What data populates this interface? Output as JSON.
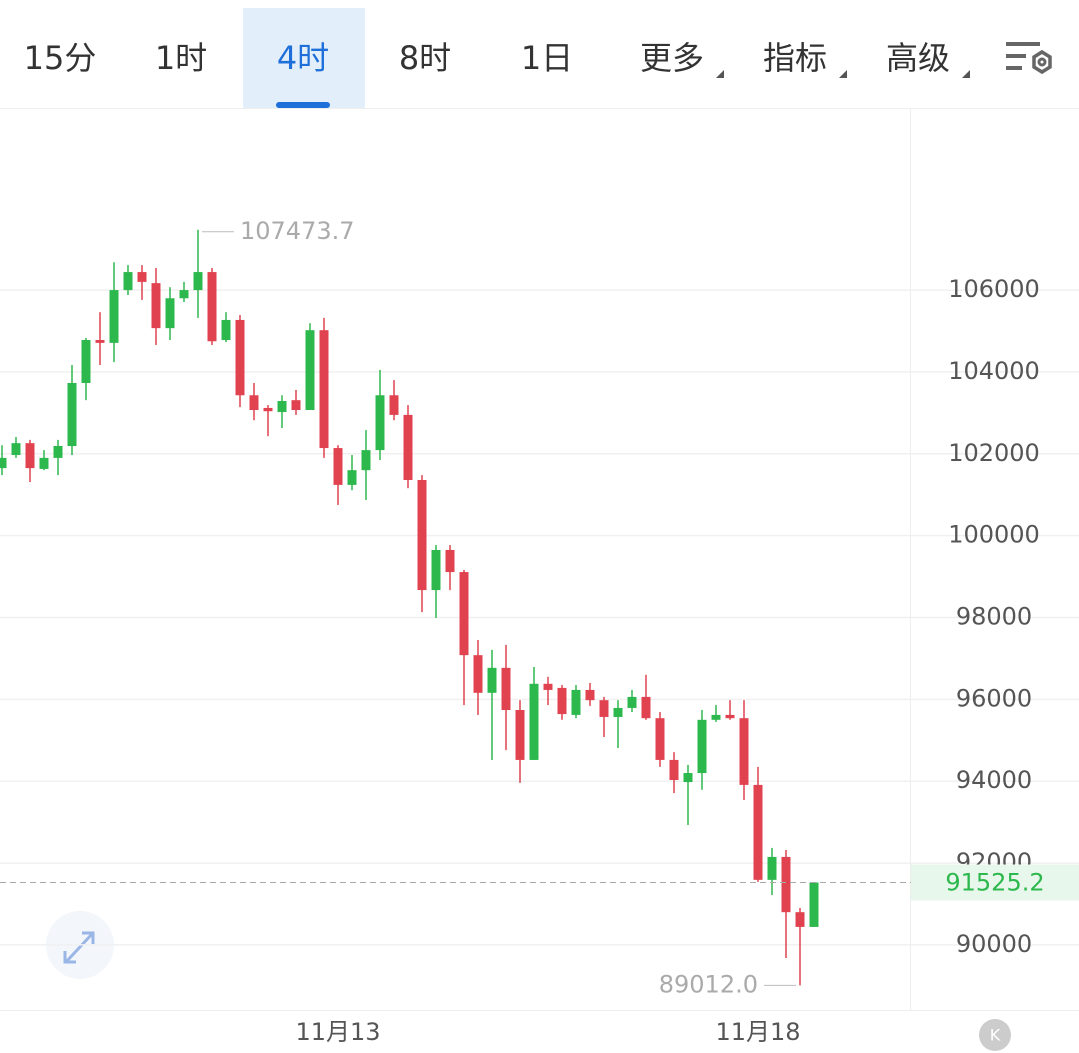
{
  "toolbar": {
    "tabs": [
      "15分",
      "1时",
      "4时",
      "8时",
      "1日"
    ],
    "active": 2,
    "menus": [
      "更多",
      "指标",
      "高级"
    ]
  },
  "chart_data": {
    "type": "candlestick",
    "categories": [
      null,
      null,
      null,
      null,
      null,
      null,
      null,
      null,
      null,
      null,
      null,
      null,
      null,
      null,
      null,
      null,
      null,
      null,
      null,
      null,
      null,
      null,
      null,
      null,
      "11月13",
      null,
      null,
      null,
      null,
      null,
      null,
      null,
      null,
      null,
      null,
      null,
      null,
      null,
      null,
      null,
      null,
      null,
      null,
      null,
      null,
      null,
      null,
      null,
      null,
      null,
      null,
      null,
      null,
      null,
      "11月18",
      null,
      null,
      null,
      null
    ],
    "open": [
      101650,
      101970,
      102260,
      101630,
      101900,
      102190,
      103730,
      104780,
      104710,
      106000,
      106440,
      106170,
      105070,
      105800,
      106000,
      106440,
      104780,
      105270,
      103430,
      103120,
      103020,
      103310,
      103070,
      105020,
      102140,
      101240,
      101600,
      102090,
      103430,
      102950,
      101360,
      98670,
      99650,
      99110,
      97080,
      96160,
      96770,
      95740,
      94520,
      96380,
      96280,
      95620,
      96230,
      95980,
      95570,
      95790,
      96060,
      95540,
      94520,
      93980,
      94200,
      95500,
      95620,
      95540,
      93910,
      91590,
      92150,
      90800,
      90440
    ],
    "high": [
      102210,
      102410,
      102340,
      102090,
      102340,
      104170,
      104830,
      105460,
      106680,
      106610,
      106610,
      106540,
      106070,
      106200,
      107473.7,
      106540,
      105460,
      105390,
      103730,
      103190,
      103430,
      103560,
      105190,
      105320,
      102210,
      101970,
      102580,
      104050,
      103800,
      103190,
      101480,
      99770,
      99770,
      99160,
      97450,
      97210,
      97330,
      95980,
      96790,
      96550,
      96350,
      96350,
      96400,
      96060,
      95980,
      96230,
      96600,
      95690,
      94710,
      94400,
      95740,
      95860,
      95980,
      95980,
      94350,
      92370,
      92320,
      90900,
      91510
    ],
    "low": [
      101480,
      101900,
      101310,
      101600,
      101480,
      101970,
      103310,
      104170,
      104240,
      105880,
      105760,
      104660,
      104780,
      105710,
      105320,
      104660,
      104730,
      103140,
      102820,
      102430,
      102630,
      102950,
      103070,
      101900,
      100750,
      101110,
      100870,
      101850,
      102820,
      101160,
      98130,
      97990,
      98670,
      95860,
      95620,
      94520,
      94760,
      93960,
      94520,
      95860,
      95500,
      95540,
      95840,
      95080,
      94810,
      95690,
      95500,
      94350,
      93710,
      92930,
      93790,
      95450,
      95500,
      93540,
      91540,
      91220,
      89680,
      89012.0,
      90440
    ],
    "close": [
      101900,
      102260,
      101650,
      101900,
      102190,
      103730,
      104780,
      104710,
      106000,
      106440,
      106200,
      105070,
      105800,
      106000,
      106440,
      104750,
      105270,
      103430,
      103070,
      103040,
      103290,
      103070,
      105020,
      102140,
      101240,
      101600,
      102090,
      103430,
      102950,
      101360,
      98670,
      99650,
      99110,
      97080,
      96160,
      96770,
      95740,
      94520,
      96380,
      96230,
      95640,
      96230,
      95980,
      95570,
      95790,
      96060,
      95540,
      94520,
      94030,
      94200,
      95500,
      95620,
      95540,
      93910,
      91590,
      92150,
      90800,
      90440,
      91525.2
    ],
    "high_label": "107473.7",
    "low_label": "89012.0",
    "last_label": "91525.2",
    "up_color": "#2db84d",
    "down_color": "#e0434f",
    "ylim": [
      88410,
      110400
    ],
    "yticks": [
      90000,
      92000,
      94000,
      96000,
      98000,
      100000,
      102000,
      104000,
      106000
    ],
    "grid": true
  }
}
